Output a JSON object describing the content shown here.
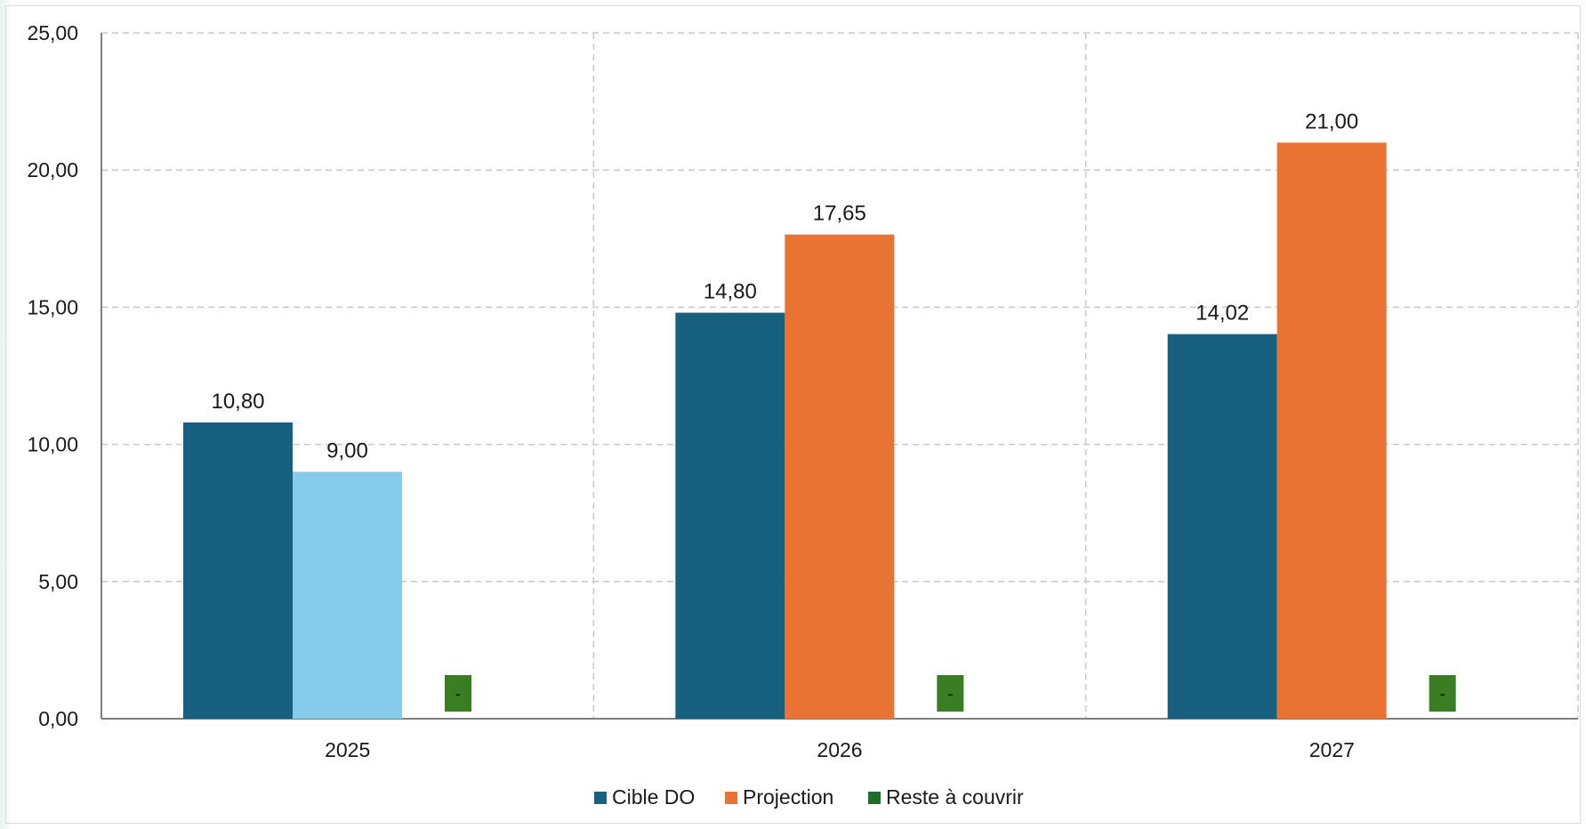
{
  "chart_data": {
    "type": "bar",
    "categories": [
      "2025",
      "2026",
      "2027"
    ],
    "series": [
      {
        "name": "Cible DO",
        "color": "#17607f",
        "values": [
          10.8,
          14.8,
          14.02
        ],
        "labels": [
          "10,80",
          "14,80",
          "14,02"
        ]
      },
      {
        "name": "Projection",
        "color": "#e97332",
        "point_colors": [
          "#86cbea",
          "#e97332",
          "#e97332"
        ],
        "values": [
          9.0,
          17.65,
          21.0
        ],
        "labels": [
          "9,00",
          "17,65",
          "21,00"
        ]
      },
      {
        "name": "Reste à couvrir",
        "color": "#1f6e2b",
        "marker_color": "#3a7d22",
        "values": [
          0,
          0,
          0
        ],
        "labels": [
          "-",
          "-",
          "-"
        ]
      }
    ],
    "ylim": [
      0,
      25
    ],
    "yticks": [
      0,
      5,
      10,
      15,
      20,
      25
    ],
    "ytick_labels": [
      "0,00",
      "5,00",
      "10,00",
      "15,00",
      "20,00",
      "25,00"
    ],
    "grid": true,
    "legend_position": "bottom",
    "title": "",
    "xlabel": "",
    "ylabel": ""
  }
}
